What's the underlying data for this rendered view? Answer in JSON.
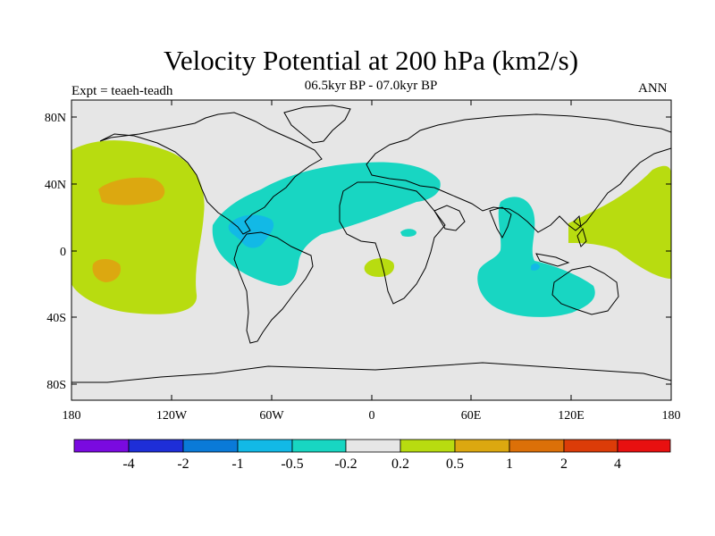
{
  "title": "Velocity Potential at 200 hPa (km2/s)",
  "subtitle": "06.5kyr BP - 07.0kyr BP",
  "left_label": "Expt = teaeh-teadh",
  "right_label": "ANN",
  "map": {
    "projection": "cylindrical-equidistant",
    "lat_ticks": [
      "80N",
      "40N",
      "0",
      "40S",
      "80S"
    ],
    "lon_ticks": [
      "180",
      "120W",
      "60W",
      "0",
      "60E",
      "120E",
      "180"
    ],
    "colors": {
      "ocean_bg": "#e6e6e6",
      "coast": "#000000"
    }
  },
  "colorbar": {
    "labels": [
      "-4",
      "-2",
      "-1",
      "-0.5",
      "-0.2",
      "0.2",
      "0.5",
      "1",
      "2",
      "4"
    ],
    "colors": [
      "#7a0ae0",
      "#1e2ed8",
      "#0a7ad8",
      "#12b9e6",
      "#18d6c2",
      "#e6e6e6",
      "#b8dc10",
      "#dca810",
      "#dc7008",
      "#dc3c08",
      "#e81010"
    ]
  }
}
